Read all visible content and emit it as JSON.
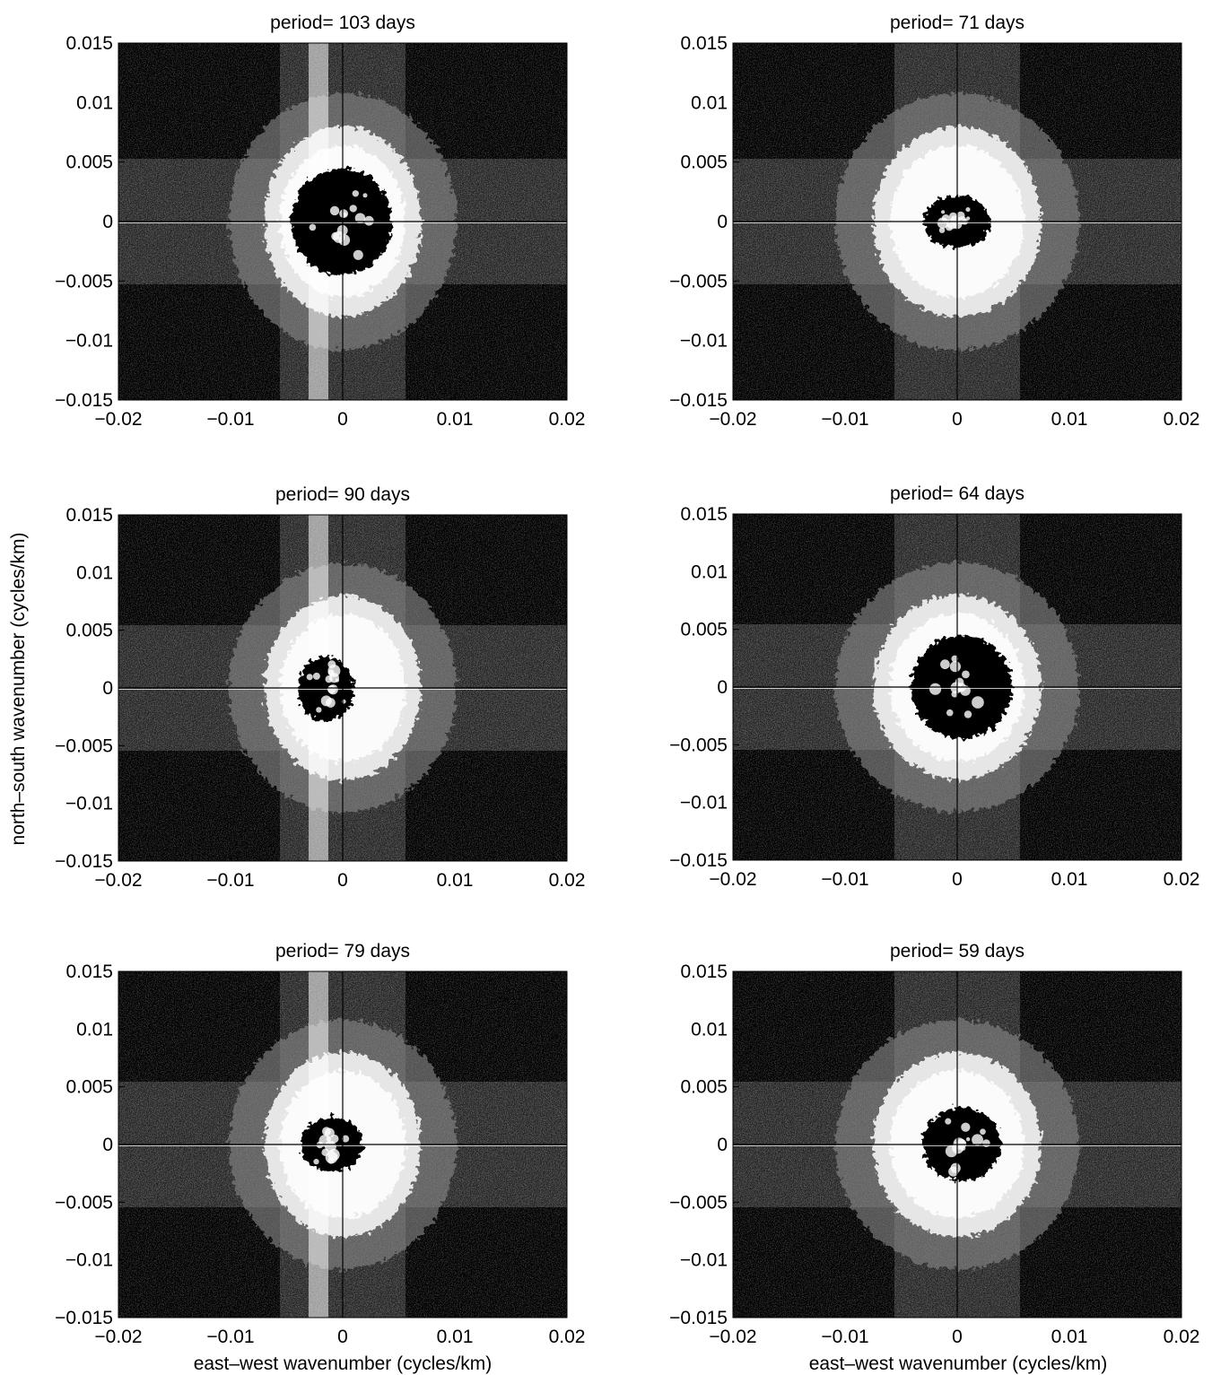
{
  "figure": {
    "y_label": "north–south wavenumber (cycles/km)",
    "x_label": "east–west wavenumber (cycles/km)"
  },
  "colors": {
    "background": "#ffffff",
    "ink": "#000000",
    "noise_dark": "#000000",
    "noise_light": "#ffffff"
  },
  "chart_data": [
    {
      "type": "heatmap",
      "title": "period= 103 days",
      "xlim": [
        -0.02,
        0.02
      ],
      "ylim": [
        -0.015,
        0.015
      ],
      "x_ticks": [
        "−0.02",
        "−0.01",
        "0",
        "0.01",
        "0.02"
      ],
      "y_ticks": [
        "0.015",
        "0.01",
        "0.005",
        "0",
        "−0.005",
        "−0.01",
        "−0.015"
      ],
      "core": {
        "cx": -0.0001,
        "cy": 0.0,
        "rx": 0.0045,
        "ry": 0.0045
      },
      "halo": {
        "rx": 0.007,
        "ry": 0.008
      },
      "vertical_band": true
    },
    {
      "type": "heatmap",
      "title": "period= 71 days",
      "xlim": [
        -0.02,
        0.02
      ],
      "ylim": [
        -0.015,
        0.015
      ],
      "x_ticks": [
        "−0.02",
        "−0.01",
        "0",
        "0.01",
        "0.02"
      ],
      "y_ticks": [
        "0.015",
        "0.01",
        "0.005",
        "0",
        "−0.005",
        "−0.01",
        "−0.015"
      ],
      "core": {
        "cx": 0.0,
        "cy": 0.0,
        "rx": 0.003,
        "ry": 0.0022
      },
      "halo": {
        "rx": 0.0075,
        "ry": 0.008
      },
      "vertical_band": false
    },
    {
      "type": "heatmap",
      "title": "period= 90 days",
      "xlim": [
        -0.02,
        0.02
      ],
      "ylim": [
        -0.015,
        0.015
      ],
      "x_ticks": [
        "−0.02",
        "−0.01",
        "0",
        "0.01",
        "0.02"
      ],
      "y_ticks": [
        "0.015",
        "0.01",
        "0.005",
        "0",
        "−0.005",
        "−0.01",
        "−0.015"
      ],
      "core": {
        "cx": -0.0015,
        "cy": -0.0001,
        "rx": 0.0025,
        "ry": 0.0028
      },
      "halo": {
        "rx": 0.007,
        "ry": 0.008
      },
      "vertical_band": true
    },
    {
      "type": "heatmap",
      "title": "period= 64 days",
      "xlim": [
        -0.02,
        0.02
      ],
      "ylim": [
        -0.015,
        0.015
      ],
      "x_ticks": [
        "−0.02",
        "−0.01",
        "0",
        "0.01",
        "0.02"
      ],
      "y_ticks": [
        "0.015",
        "0.01",
        "0.005",
        "0",
        "−0.005",
        "−0.01",
        "−0.015"
      ],
      "core": {
        "cx": 0.0004,
        "cy": 0.0,
        "rx": 0.0045,
        "ry": 0.0045
      },
      "halo": {
        "rx": 0.0075,
        "ry": 0.008
      },
      "vertical_band": false
    },
    {
      "type": "heatmap",
      "title": "period= 79 days",
      "xlim": [
        -0.02,
        0.02
      ],
      "ylim": [
        -0.015,
        0.015
      ],
      "x_ticks": [
        "−0.02",
        "−0.01",
        "0",
        "0.01",
        "0.02"
      ],
      "y_ticks": [
        "0.015",
        "0.01",
        "0.005",
        "0",
        "−0.005",
        "−0.01",
        "−0.015"
      ],
      "core": {
        "cx": -0.001,
        "cy": 0.0,
        "rx": 0.0028,
        "ry": 0.0024
      },
      "halo": {
        "rx": 0.007,
        "ry": 0.008
      },
      "vertical_band": true
    },
    {
      "type": "heatmap",
      "title": "period= 59 days",
      "xlim": [
        -0.02,
        0.02
      ],
      "ylim": [
        -0.015,
        0.015
      ],
      "x_ticks": [
        "−0.02",
        "−0.01",
        "0",
        "0.01",
        "0.02"
      ],
      "y_ticks": [
        "0.015",
        "0.01",
        "0.005",
        "0",
        "−0.005",
        "−0.01",
        "−0.015"
      ],
      "core": {
        "cx": 0.0004,
        "cy": 0.0,
        "rx": 0.0035,
        "ry": 0.0032
      },
      "halo": {
        "rx": 0.0075,
        "ry": 0.008
      },
      "vertical_band": false
    }
  ]
}
